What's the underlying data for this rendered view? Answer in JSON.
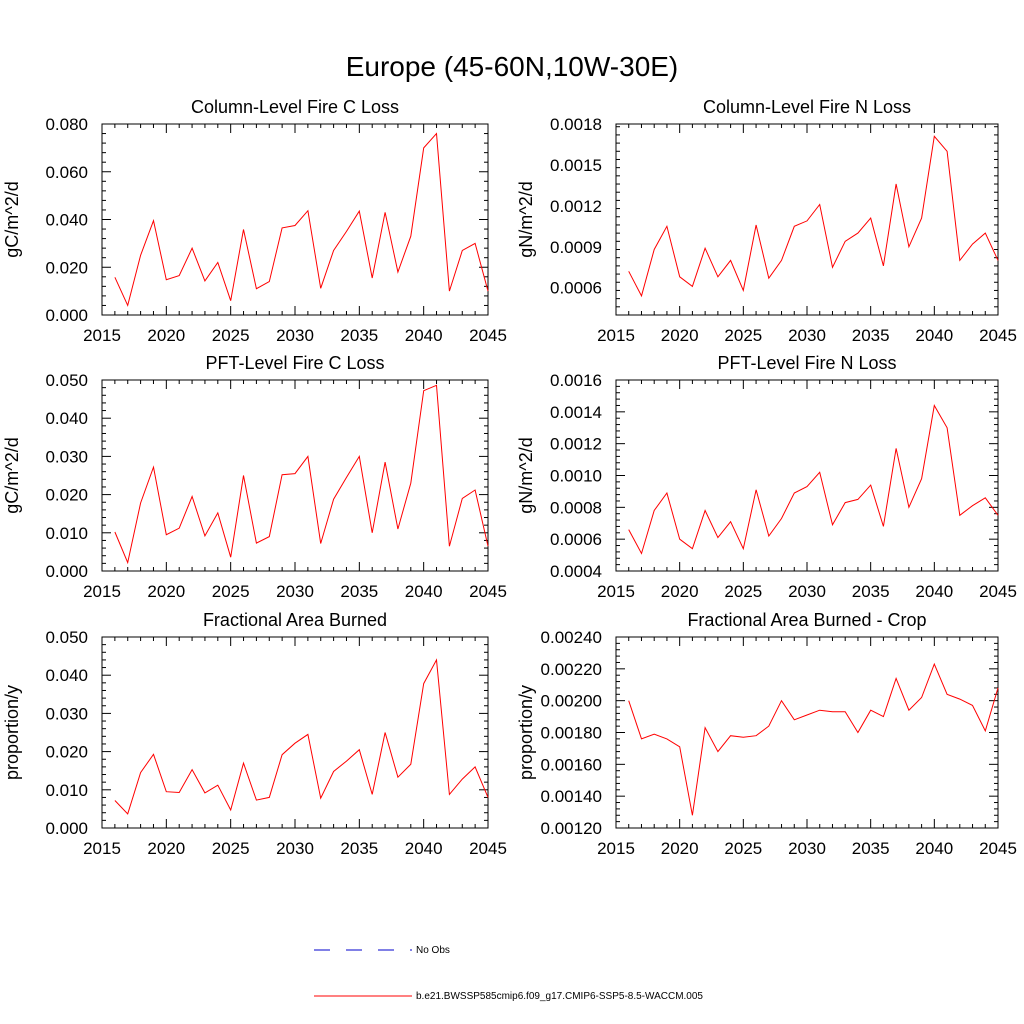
{
  "figure_title": "Europe (45-60N,10W-30E)",
  "colors": {
    "series": "#ff0000",
    "no_obs": "#0000cc",
    "axis": "#000000"
  },
  "legend": {
    "items": [
      {
        "label": "No Obs",
        "style": "dashed",
        "color": "#0000cc"
      },
      {
        "label": "b.e21.BWSSP585cmip6.f09_g17.CMIP6-SSP5-8.5-WACCM.005",
        "style": "solid",
        "color": "#ff0000"
      }
    ]
  },
  "chart_data": [
    {
      "type": "line",
      "title": "Column-Level Fire C Loss",
      "xlabel": "",
      "ylabel": "gC/m^2/d",
      "xlim": [
        2015,
        2045
      ],
      "ylim": [
        0,
        0.08
      ],
      "xticks": [
        2015,
        2020,
        2025,
        2030,
        2035,
        2040,
        2045
      ],
      "yticks": [
        0,
        0.02,
        0.04,
        0.06,
        0.08
      ],
      "ytick_labels": [
        "0.000",
        "0.020",
        "0.040",
        "0.060",
        "0.080"
      ],
      "x": [
        2016,
        2017,
        2018,
        2019,
        2020,
        2021,
        2022,
        2023,
        2024,
        2025,
        2026,
        2027,
        2028,
        2029,
        2030,
        2031,
        2032,
        2033,
        2034,
        2035,
        2036,
        2037,
        2038,
        2039,
        2040,
        2041,
        2042,
        2043,
        2044,
        2045
      ],
      "series": [
        {
          "name": "b.e21.BWSSP585cmip6.f09_g17.CMIP6-SSP5-8.5-WACCM.005",
          "values": [
            0.0158,
            0.004,
            0.025,
            0.0395,
            0.0148,
            0.0165,
            0.028,
            0.0143,
            0.022,
            0.006,
            0.0358,
            0.011,
            0.014,
            0.0365,
            0.0375,
            0.0437,
            0.0112,
            0.027,
            0.035,
            0.0435,
            0.0155,
            0.043,
            0.018,
            0.033,
            0.07,
            0.076,
            0.01,
            0.027,
            0.03,
            0.01
          ]
        }
      ]
    },
    {
      "type": "line",
      "title": "Column-Level Fire N Loss",
      "xlabel": "",
      "ylabel": "gN/m^2/d",
      "xlim": [
        2015,
        2045
      ],
      "ylim": [
        0.0004,
        0.0018
      ],
      "xticks": [
        2015,
        2020,
        2025,
        2030,
        2035,
        2040,
        2045
      ],
      "yticks": [
        0.0006,
        0.0009,
        0.0012,
        0.0015,
        0.0018
      ],
      "ytick_labels": [
        "0.0006",
        "0.0009",
        "0.0012",
        "0.0015",
        "0.0018"
      ],
      "x": [
        2016,
        2017,
        2018,
        2019,
        2020,
        2021,
        2022,
        2023,
        2024,
        2025,
        2026,
        2027,
        2028,
        2029,
        2030,
        2031,
        2032,
        2033,
        2034,
        2035,
        2036,
        2037,
        2038,
        2039,
        2040,
        2041,
        2042,
        2043,
        2044,
        2045
      ],
      "series": [
        {
          "name": "b.e21.BWSSP585cmip6.f09_g17.CMIP6-SSP5-8.5-WACCM.005",
          "values": [
            0.00072,
            0.00054,
            0.00088,
            0.00105,
            0.00068,
            0.00061,
            0.00089,
            0.00068,
            0.0008,
            0.00058,
            0.00106,
            0.00067,
            0.0008,
            0.00105,
            0.00109,
            0.00121,
            0.00075,
            0.00094,
            0.001,
            0.00111,
            0.00076,
            0.00136,
            0.0009,
            0.00111,
            0.00171,
            0.0016,
            0.0008,
            0.00092,
            0.001,
            0.0008
          ]
        }
      ]
    },
    {
      "type": "line",
      "title": "PFT-Level Fire C Loss",
      "xlabel": "",
      "ylabel": "gC/m^2/d",
      "xlim": [
        2015,
        2045
      ],
      "ylim": [
        0,
        0.05
      ],
      "xticks": [
        2015,
        2020,
        2025,
        2030,
        2035,
        2040,
        2045
      ],
      "yticks": [
        0,
        0.01,
        0.02,
        0.03,
        0.04,
        0.05
      ],
      "ytick_labels": [
        "0.000",
        "0.010",
        "0.020",
        "0.030",
        "0.040",
        "0.050"
      ],
      "x": [
        2016,
        2017,
        2018,
        2019,
        2020,
        2021,
        2022,
        2023,
        2024,
        2025,
        2026,
        2027,
        2028,
        2029,
        2030,
        2031,
        2032,
        2033,
        2034,
        2035,
        2036,
        2037,
        2038,
        2039,
        2040,
        2041,
        2042,
        2043,
        2044,
        2045
      ],
      "series": [
        {
          "name": "b.e21.BWSSP585cmip6.f09_g17.CMIP6-SSP5-8.5-WACCM.005",
          "values": [
            0.0102,
            0.0022,
            0.0178,
            0.0272,
            0.0095,
            0.0112,
            0.0195,
            0.0092,
            0.0152,
            0.0036,
            0.025,
            0.0073,
            0.009,
            0.0252,
            0.0255,
            0.03,
            0.0072,
            0.0188,
            0.0245,
            0.03,
            0.01,
            0.0285,
            0.011,
            0.023,
            0.0472,
            0.0486,
            0.0065,
            0.019,
            0.0212,
            0.0065
          ]
        }
      ]
    },
    {
      "type": "line",
      "title": "PFT-Level Fire N Loss",
      "xlabel": "",
      "ylabel": "gN/m^2/d",
      "xlim": [
        2015,
        2045
      ],
      "ylim": [
        0.0004,
        0.0016
      ],
      "xticks": [
        2015,
        2020,
        2025,
        2030,
        2035,
        2040,
        2045
      ],
      "yticks": [
        0.0004,
        0.0006,
        0.0008,
        0.001,
        0.0012,
        0.0014,
        0.0016
      ],
      "ytick_labels": [
        "0.0004",
        "0.0006",
        "0.0008",
        "0.0010",
        "0.0012",
        "0.0014",
        "0.0016"
      ],
      "x": [
        2016,
        2017,
        2018,
        2019,
        2020,
        2021,
        2022,
        2023,
        2024,
        2025,
        2026,
        2027,
        2028,
        2029,
        2030,
        2031,
        2032,
        2033,
        2034,
        2035,
        2036,
        2037,
        2038,
        2039,
        2040,
        2041,
        2042,
        2043,
        2044,
        2045
      ],
      "series": [
        {
          "name": "b.e21.BWSSP585cmip6.f09_g17.CMIP6-SSP5-8.5-WACCM.005",
          "values": [
            0.00066,
            0.00051,
            0.00078,
            0.00089,
            0.0006,
            0.00054,
            0.00078,
            0.00061,
            0.00071,
            0.00054,
            0.00091,
            0.00062,
            0.00073,
            0.00089,
            0.00093,
            0.00102,
            0.00069,
            0.00083,
            0.00085,
            0.00094,
            0.00068,
            0.00117,
            0.0008,
            0.00098,
            0.00144,
            0.0013,
            0.00075,
            0.00081,
            0.00086,
            0.00075
          ]
        }
      ]
    },
    {
      "type": "line",
      "title": "Fractional Area Burned",
      "xlabel": "",
      "ylabel": "proportion/y",
      "xlim": [
        2015,
        2045
      ],
      "ylim": [
        0,
        0.05
      ],
      "xticks": [
        2015,
        2020,
        2025,
        2030,
        2035,
        2040,
        2045
      ],
      "yticks": [
        0,
        0.01,
        0.02,
        0.03,
        0.04,
        0.05
      ],
      "ytick_labels": [
        "0.000",
        "0.010",
        "0.020",
        "0.030",
        "0.040",
        "0.050"
      ],
      "x": [
        2016,
        2017,
        2018,
        2019,
        2020,
        2021,
        2022,
        2023,
        2024,
        2025,
        2026,
        2027,
        2028,
        2029,
        2030,
        2031,
        2032,
        2033,
        2034,
        2035,
        2036,
        2037,
        2038,
        2039,
        2040,
        2041,
        2042,
        2043,
        2044,
        2045
      ],
      "series": [
        {
          "name": "b.e21.BWSSP585cmip6.f09_g17.CMIP6-SSP5-8.5-WACCM.005",
          "values": [
            0.0072,
            0.0037,
            0.0145,
            0.0193,
            0.0095,
            0.0093,
            0.0153,
            0.0092,
            0.0112,
            0.0047,
            0.017,
            0.0073,
            0.008,
            0.0192,
            0.0222,
            0.0245,
            0.0078,
            0.0148,
            0.0175,
            0.0205,
            0.0088,
            0.025,
            0.0133,
            0.0167,
            0.0378,
            0.044,
            0.0088,
            0.0128,
            0.016,
            0.008
          ]
        }
      ]
    },
    {
      "type": "line",
      "title": "Fractional Area Burned - Crop",
      "xlabel": "",
      "ylabel": "proportion/y",
      "xlim": [
        2015,
        2045
      ],
      "ylim": [
        0.0012,
        0.0024
      ],
      "xticks": [
        2015,
        2020,
        2025,
        2030,
        2035,
        2040,
        2045
      ],
      "yticks": [
        0.0012,
        0.0014,
        0.0016,
        0.0018,
        0.002,
        0.0022,
        0.0024
      ],
      "ytick_labels": [
        "0.00120",
        "0.00140",
        "0.00160",
        "0.00180",
        "0.00200",
        "0.00220",
        "0.00240"
      ],
      "x": [
        2016,
        2017,
        2018,
        2019,
        2020,
        2021,
        2022,
        2023,
        2024,
        2025,
        2026,
        2027,
        2028,
        2029,
        2030,
        2031,
        2032,
        2033,
        2034,
        2035,
        2036,
        2037,
        2038,
        2039,
        2040,
        2041,
        2042,
        2043,
        2044,
        2045
      ],
      "series": [
        {
          "name": "b.e21.BWSSP585cmip6.f09_g17.CMIP6-SSP5-8.5-WACCM.005",
          "values": [
            0.002,
            0.00176,
            0.00179,
            0.00176,
            0.00171,
            0.00128,
            0.00183,
            0.00168,
            0.00178,
            0.00177,
            0.00178,
            0.00184,
            0.002,
            0.00188,
            0.00191,
            0.00194,
            0.00193,
            0.00193,
            0.0018,
            0.00194,
            0.0019,
            0.00214,
            0.00194,
            0.00202,
            0.00223,
            0.00204,
            0.00201,
            0.00197,
            0.00181,
            0.00208
          ]
        }
      ]
    }
  ]
}
